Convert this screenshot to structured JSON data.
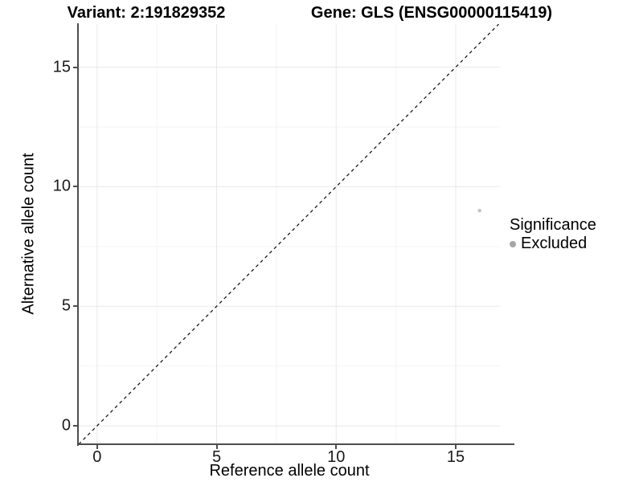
{
  "chart_data": {
    "type": "scatter",
    "title_left": "Variant: 2:191829352",
    "title_right": "Gene: GLS (ENSG00000115419)",
    "xlabel": "Reference allele count",
    "ylabel": "Alternative allele count",
    "x_ticks": [
      0,
      5,
      10,
      15
    ],
    "y_ticks": [
      0,
      5,
      10,
      15
    ],
    "xlim": [
      -0.8,
      16.85
    ],
    "ylim": [
      -0.77,
      16.8
    ],
    "grid": "major gridlines at ticks plus faint minor gridlines, light gray on white; left and bottom axis lines only",
    "points": [
      {
        "x": 16,
        "y": 9,
        "series": "Excluded"
      }
    ],
    "reference_line": {
      "type": "identity",
      "slope": 1,
      "intercept": 0,
      "linetype": "dashed"
    },
    "legend": {
      "position": "right",
      "title": "Significance",
      "items": [
        {
          "label": "Excluded",
          "color": "#a6a6a6"
        }
      ]
    },
    "colors": {
      "point": "#c6c6c6",
      "legend_key": "#a6a6a6",
      "axis_line": "#4d4d4d",
      "grid_major": "#e8e8e8",
      "grid_minor": "#f4f4f4",
      "dashed_line": "#1a1a1a",
      "text": "#000000"
    }
  }
}
